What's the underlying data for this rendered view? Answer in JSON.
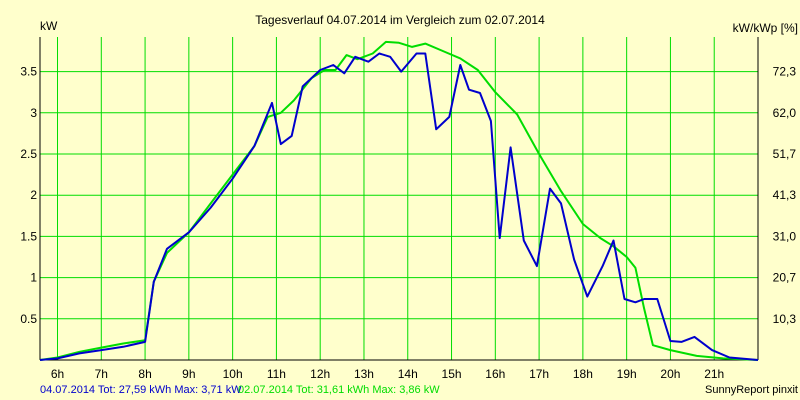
{
  "chart_data": {
    "type": "line",
    "title": "Tagesverlauf 04.07.2014 im Vergleich zum 02.07.2014",
    "ylabel_left": "kW",
    "ylabel_right": "kW/kWp [%]",
    "xlim": [
      5.6,
      22.0
    ],
    "ylim": [
      0,
      3.92
    ],
    "grid": true,
    "x_ticks": [
      {
        "value": 6,
        "label": "6h"
      },
      {
        "value": 7,
        "label": "7h"
      },
      {
        "value": 8,
        "label": "8h"
      },
      {
        "value": 9,
        "label": "9h"
      },
      {
        "value": 10,
        "label": "10h"
      },
      {
        "value": 11,
        "label": "11h"
      },
      {
        "value": 12,
        "label": "12h"
      },
      {
        "value": 13,
        "label": "13h"
      },
      {
        "value": 14,
        "label": "14h"
      },
      {
        "value": 15,
        "label": "15h"
      },
      {
        "value": 16,
        "label": "16h"
      },
      {
        "value": 17,
        "label": "17h"
      },
      {
        "value": 18,
        "label": "18h"
      },
      {
        "value": 19,
        "label": "19h"
      },
      {
        "value": 20,
        "label": "20h"
      },
      {
        "value": 21,
        "label": "21h"
      }
    ],
    "y_ticks_left": [
      {
        "value": 0.5,
        "label": "0.5"
      },
      {
        "value": 1,
        "label": "1"
      },
      {
        "value": 1.5,
        "label": "1.5"
      },
      {
        "value": 2,
        "label": "2"
      },
      {
        "value": 2.5,
        "label": "2.5"
      },
      {
        "value": 3,
        "label": "3"
      },
      {
        "value": 3.5,
        "label": "3.5"
      }
    ],
    "y_ticks_right": [
      {
        "value": 0.5,
        "label": "10,3"
      },
      {
        "value": 1.0,
        "label": "20,7"
      },
      {
        "value": 1.5,
        "label": "31,0"
      },
      {
        "value": 2.0,
        "label": "41,3"
      },
      {
        "value": 2.5,
        "label": "51,7"
      },
      {
        "value": 3.0,
        "label": "62,0"
      },
      {
        "value": 3.5,
        "label": "72,3"
      }
    ],
    "series": [
      {
        "name": "04.07.2014",
        "color": "#0000cc",
        "x": [
          5.6,
          6,
          6.5,
          7,
          7.5,
          8,
          8.2,
          8.5,
          9,
          9.5,
          10,
          10.5,
          10.9,
          11.1,
          11.35,
          11.6,
          12,
          12.3,
          12.55,
          12.8,
          13.1,
          13.35,
          13.6,
          13.85,
          14.2,
          14.4,
          14.65,
          14.95,
          15.2,
          15.4,
          15.65,
          15.9,
          16.1,
          16.35,
          16.65,
          16.95,
          17.25,
          17.5,
          17.8,
          18.1,
          18.45,
          18.7,
          18.95,
          19.2,
          19.4,
          19.7,
          20.0,
          20.25,
          20.55,
          20.95,
          21.35,
          22.0
        ],
        "y": [
          0,
          0.02,
          0.08,
          0.12,
          0.16,
          0.22,
          0.95,
          1.35,
          1.55,
          1.85,
          2.2,
          2.6,
          3.12,
          2.62,
          2.72,
          3.32,
          3.52,
          3.58,
          3.48,
          3.68,
          3.62,
          3.72,
          3.68,
          3.5,
          3.72,
          3.72,
          2.8,
          2.95,
          3.58,
          3.28,
          3.24,
          2.9,
          1.48,
          2.58,
          1.45,
          1.14,
          2.08,
          1.9,
          1.22,
          0.77,
          1.14,
          1.45,
          0.74,
          0.7,
          0.74,
          0.74,
          0.23,
          0.22,
          0.28,
          0.12,
          0.03,
          0
        ]
      },
      {
        "name": "02.07.2014",
        "color": "#00dd00",
        "x": [
          5.6,
          6,
          6.5,
          7,
          7.5,
          8,
          8.2,
          8.5,
          9,
          9.5,
          10,
          10.5,
          10.8,
          11.1,
          11.4,
          11.8,
          12.1,
          12.35,
          12.6,
          12.85,
          13.2,
          13.5,
          13.8,
          14.1,
          14.4,
          14.8,
          15.2,
          15.6,
          16,
          16.5,
          17,
          17.5,
          18,
          18.4,
          18.7,
          19.0,
          19.2,
          19.4,
          19.6,
          20.0,
          20.6,
          21.2,
          22.0
        ],
        "y": [
          0,
          0.03,
          0.1,
          0.15,
          0.2,
          0.24,
          0.95,
          1.3,
          1.55,
          1.9,
          2.25,
          2.6,
          2.95,
          3.0,
          3.15,
          3.42,
          3.52,
          3.52,
          3.7,
          3.65,
          3.72,
          3.86,
          3.85,
          3.8,
          3.84,
          3.75,
          3.66,
          3.52,
          3.25,
          2.98,
          2.5,
          2.05,
          1.65,
          1.48,
          1.38,
          1.25,
          1.12,
          0.62,
          0.18,
          0.12,
          0.05,
          0.02,
          0
        ]
      }
    ]
  },
  "footer": {
    "series1_text": "04.07.2014 Tot: 27,59 kWh Max: 3,71 kW",
    "series2_text": "02.07.2014 Tot: 31,61 kWh Max: 3,86 kW",
    "credit": "SunnyReport pinxit"
  },
  "colors": {
    "background": "#ffffcc",
    "grid": "#00dd00",
    "series1": "#0000cc",
    "series2": "#00dd00"
  }
}
